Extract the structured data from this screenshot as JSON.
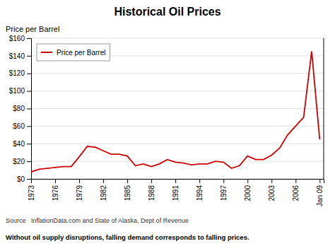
{
  "chart_data": {
    "type": "line",
    "title": "Historical Oil Prices",
    "y_label": "Price per Barrel",
    "annotations": [
      "Source   InflationData.com and State of Alaska, Dept of Revenue",
      "Without oil supply disruptions, falling demand corresponds to falling prices."
    ],
    "x": [
      1973,
      1974,
      1975,
      1976,
      1977,
      1978,
      1979,
      1980,
      1981,
      1982,
      1983,
      1984,
      1985,
      1986,
      1987,
      1988,
      1989,
      1990,
      1991,
      1992,
      1993,
      1994,
      1995,
      1996,
      1997,
      1998,
      1999,
      2000,
      2001,
      2002,
      2003,
      2004,
      2005,
      2006,
      2007,
      2008,
      2009
    ],
    "series": [
      {
        "name": "Price per Barrel",
        "color": "#cc0000",
        "values": [
          8,
          11,
          12,
          13,
          14,
          14,
          25,
          37,
          36,
          32,
          28,
          28,
          26,
          15,
          17,
          14,
          17,
          22,
          19,
          18,
          16,
          17,
          17,
          20,
          19,
          12,
          15,
          26,
          22,
          22,
          27,
          35,
          50,
          60,
          70,
          145,
          45
        ]
      }
    ],
    "xlim": [
      1973,
      2009.5
    ],
    "xticks": [
      1973,
      1976,
      1979,
      1982,
      1985,
      1988,
      1991,
      1994,
      1997,
      2000,
      2003,
      2006,
      {
        "value": 2009,
        "label": "Jan 09"
      }
    ],
    "ylim": [
      0,
      160
    ],
    "yticks": [
      {
        "value": 0,
        "label": "$0"
      },
      {
        "value": 20,
        "label": "$20"
      },
      {
        "value": 40,
        "label": "$40"
      },
      {
        "value": 60,
        "label": "$60"
      },
      {
        "value": 80,
        "label": "$80"
      },
      {
        "value": 100,
        "label": "$100"
      },
      {
        "value": 120,
        "label": "$120"
      },
      {
        "value": 140,
        "label": "$140"
      },
      {
        "value": 160,
        "label": "$160"
      }
    ],
    "grid": true,
    "legend": "top-left"
  }
}
